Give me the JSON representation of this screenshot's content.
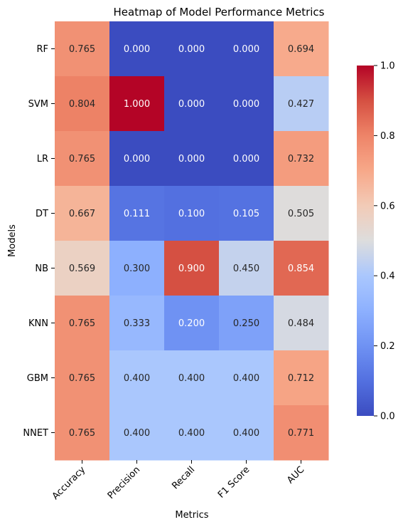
{
  "chart_data": {
    "type": "heatmap",
    "title": "Heatmap of Model Performance Metrics",
    "xlabel": "Metrics",
    "ylabel": "Models",
    "x": [
      "Accuracy",
      "Precision",
      "Recall",
      "F1 Score",
      "AUC"
    ],
    "y": [
      "RF",
      "SVM",
      "LR",
      "DT",
      "NB",
      "KNN",
      "GBM",
      "NNET"
    ],
    "values": [
      [
        0.765,
        0.0,
        0.0,
        0.0,
        0.694
      ],
      [
        0.804,
        1.0,
        0.0,
        0.0,
        0.427
      ],
      [
        0.765,
        0.0,
        0.0,
        0.0,
        0.732
      ],
      [
        0.667,
        0.111,
        0.1,
        0.105,
        0.505
      ],
      [
        0.569,
        0.3,
        0.9,
        0.45,
        0.854
      ],
      [
        0.765,
        0.333,
        0.2,
        0.25,
        0.484
      ],
      [
        0.765,
        0.4,
        0.4,
        0.4,
        0.712
      ],
      [
        0.765,
        0.4,
        0.4,
        0.4,
        0.771
      ]
    ],
    "value_format": "3 decimals",
    "colormap": "coolwarm",
    "vmin": 0.0,
    "vmax": 1.0,
    "colorbar_ticks": [
      0.0,
      0.2,
      0.4,
      0.6,
      0.8,
      1.0
    ],
    "colorbar_tick_labels": [
      "0.0",
      "0.2",
      "0.4",
      "0.6",
      "0.8",
      "1.0"
    ],
    "colorbar_placement": "right",
    "grid": false
  }
}
